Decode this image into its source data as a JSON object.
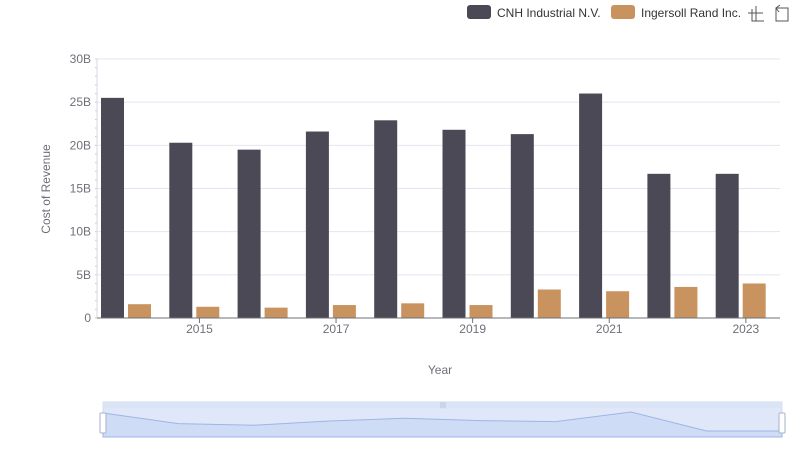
{
  "chart_data": {
    "type": "bar",
    "categories": [
      "2014",
      "2015",
      "2016",
      "2017",
      "2018",
      "2019",
      "2020",
      "2021",
      "2022",
      "2023"
    ],
    "x_tick_labels": [
      "2015",
      "2017",
      "2019",
      "2021",
      "2023"
    ],
    "series": [
      {
        "name": "CNH Industrial N.V.",
        "color": "#4a4955",
        "values": [
          25.5,
          20.3,
          19.5,
          21.6,
          22.9,
          21.8,
          21.3,
          26.0,
          16.7,
          16.7
        ]
      },
      {
        "name": "Ingersoll Rand Inc.",
        "color": "#c8935f",
        "values": [
          1.6,
          1.3,
          1.2,
          1.5,
          1.7,
          1.5,
          3.3,
          3.1,
          3.6,
          4.0
        ]
      }
    ],
    "y_ticks": [
      "0",
      "5B",
      "10B",
      "15B",
      "20B",
      "25B",
      "30B"
    ],
    "ylim": [
      0,
      30
    ],
    "xlabel": "Year",
    "ylabel": "Cost of Revenue",
    "legend_position": "top-right",
    "grid": true
  },
  "toolbar": {
    "zoom_icon": "zoom-icon",
    "restore_icon": "restore-icon"
  }
}
